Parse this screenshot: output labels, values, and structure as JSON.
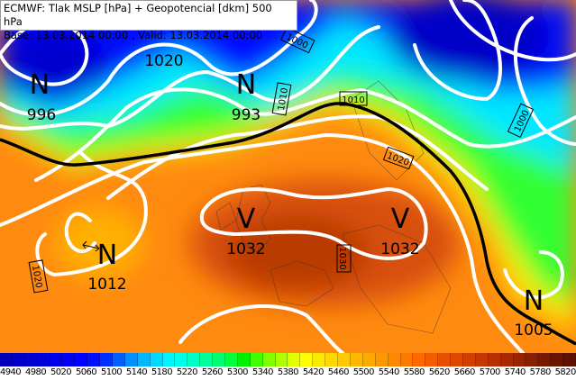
{
  "header": {
    "title": "ECMWF: Tlak MSLP [hPa] + Geopotencial [dkm] 500 hPa",
    "subtitle": "Base: 13.03.2014 00:00 , Valid: 13.03.2014 00:00"
  },
  "pressure_centers": [
    {
      "type": "N",
      "value": "996"
    },
    {
      "type": "N",
      "value": "993"
    },
    {
      "type": "N",
      "value": "1012"
    },
    {
      "type": "V",
      "value": "1032"
    },
    {
      "type": "V",
      "value": "1032"
    },
    {
      "type": "N",
      "value": "1005"
    }
  ],
  "extra_label": "1020",
  "isobar_labels": [
    "1010",
    "1020",
    "1000",
    "1010",
    "1000",
    "1020",
    "1030",
    "1000"
  ],
  "colorbar": {
    "ticks": [
      "4940",
      "4980",
      "5020",
      "5060",
      "5100",
      "5140",
      "5180",
      "5220",
      "5260",
      "5300",
      "5340",
      "5380",
      "5420",
      "5460",
      "5500",
      "5540",
      "5580",
      "5620",
      "5660",
      "5700",
      "5740",
      "5780",
      "5820"
    ],
    "colors": [
      "#0000b8",
      "#0000c4",
      "#0000d0",
      "#0000dc",
      "#0000e8",
      "#0000f4",
      "#0000ff",
      "#0010ff",
      "#0030ff",
      "#0060ff",
      "#0090ff",
      "#00b8ff",
      "#00d8ff",
      "#00f4ff",
      "#00ffe8",
      "#00ffc0",
      "#00ff98",
      "#00ff70",
      "#00ff40",
      "#00f000",
      "#40ff00",
      "#80ff00",
      "#b0ff00",
      "#e0ff00",
      "#ffff00",
      "#ffe800",
      "#ffd800",
      "#ffc800",
      "#ffb800",
      "#ffa800",
      "#ff9800",
      "#ff8800",
      "#ff7800",
      "#ff6800",
      "#f45c00",
      "#e85000",
      "#dc4800",
      "#d04000",
      "#c43800",
      "#b83000",
      "#a82800",
      "#982400",
      "#882000",
      "#781800",
      "#6c1400",
      "#601000"
    ]
  },
  "colors": {
    "isobar": "#ffffff",
    "reference_isobar": "#000000"
  }
}
